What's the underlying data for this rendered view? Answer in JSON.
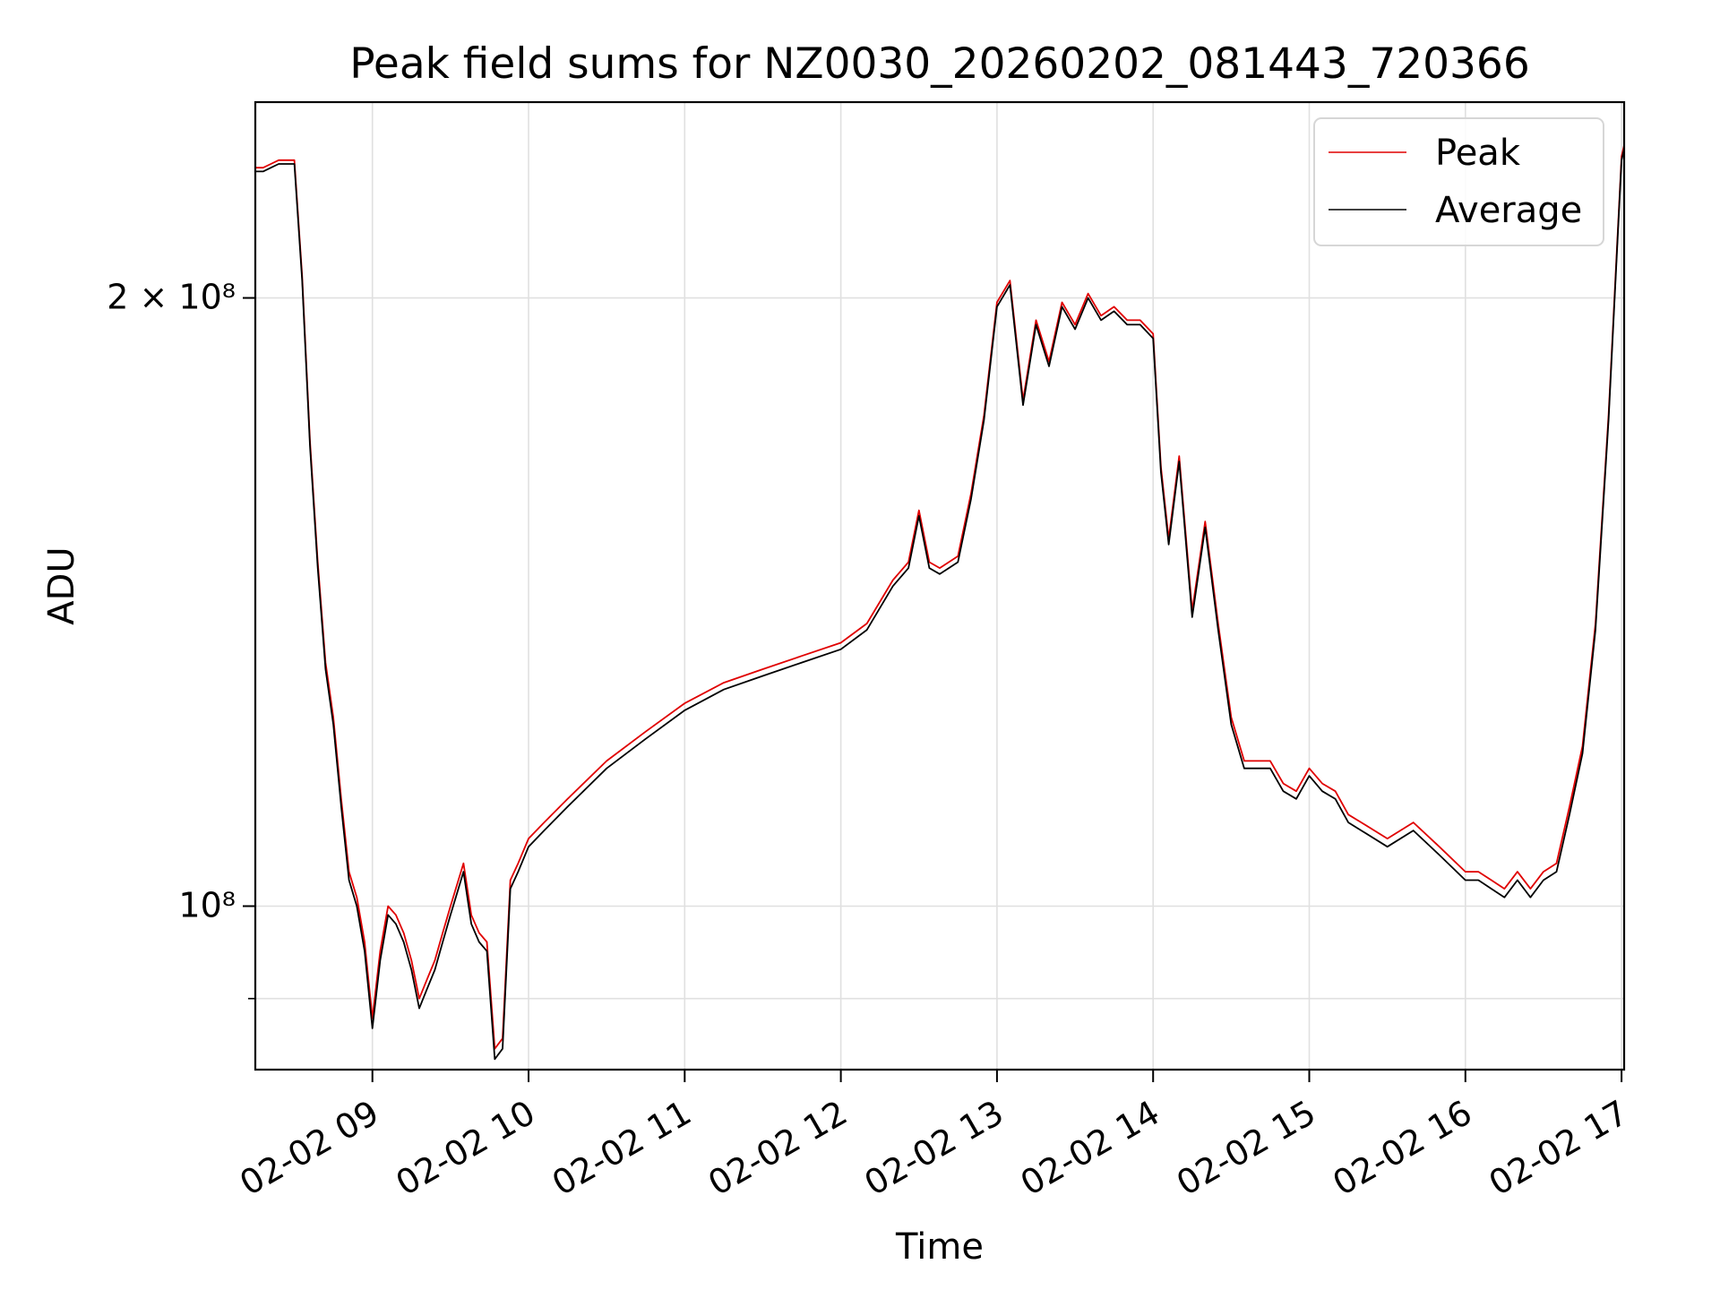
{
  "chart_data": {
    "type": "line",
    "title": "Peak field sums for NZ0030_20260202_081443_720366",
    "xlabel": "Time",
    "ylabel": "ADU",
    "y_scale": "log",
    "ylim": [
      83000000,
      250000000
    ],
    "xlim": [
      "02-02 08:15",
      "02-02 17:01"
    ],
    "grid": true,
    "legend": {
      "position": "top-right",
      "entries": [
        "Peak",
        "Average"
      ]
    },
    "x_ticks": [
      "02-02 09",
      "02-02 10",
      "02-02 11",
      "02-02 12",
      "02-02 13",
      "02-02 14",
      "02-02 15",
      "02-02 16",
      "02-02 17"
    ],
    "y_ticks": [
      "2 × 10⁸",
      "10⁸"
    ],
    "colors": {
      "Peak": "#e00000",
      "Average": "#000000",
      "grid": "#e0e0e0"
    },
    "x": [
      "02-02 08:15",
      "02-02 08:18",
      "02-02 08:21",
      "02-02 08:24",
      "02-02 08:27",
      "02-02 08:30",
      "02-02 08:33",
      "02-02 08:36",
      "02-02 08:39",
      "02-02 08:42",
      "02-02 08:45",
      "02-02 08:48",
      "02-02 08:51",
      "02-02 08:54",
      "02-02 08:57",
      "02-02 09:00",
      "02-02 09:03",
      "02-02 09:06",
      "02-02 09:09",
      "02-02 09:12",
      "02-02 09:15",
      "02-02 09:18",
      "02-02 09:21",
      "02-02 09:24",
      "02-02 09:27",
      "02-02 09:30",
      "02-02 09:35",
      "02-02 09:38",
      "02-02 09:41",
      "02-02 09:44",
      "02-02 09:47",
      "02-02 09:50",
      "02-02 09:53",
      "02-02 09:56",
      "02-02 10:00",
      "02-02 10:06",
      "02-02 10:15",
      "02-02 10:30",
      "02-02 10:45",
      "02-02 11:00",
      "02-02 11:15",
      "02-02 11:30",
      "02-02 11:45",
      "02-02 12:00",
      "02-02 12:10",
      "02-02 12:20",
      "02-02 12:26",
      "02-02 12:30",
      "02-02 12:34",
      "02-02 12:38",
      "02-02 12:45",
      "02-02 12:50",
      "02-02 12:55",
      "02-02 13:00",
      "02-02 13:05",
      "02-02 13:10",
      "02-02 13:15",
      "02-02 13:20",
      "02-02 13:25",
      "02-02 13:30",
      "02-02 13:35",
      "02-02 13:40",
      "02-02 13:45",
      "02-02 13:50",
      "02-02 13:55",
      "02-02 14:00",
      "02-02 14:03",
      "02-02 14:06",
      "02-02 14:10",
      "02-02 14:15",
      "02-02 14:20",
      "02-02 14:25",
      "02-02 14:30",
      "02-02 14:35",
      "02-02 14:40",
      "02-02 14:45",
      "02-02 14:50",
      "02-02 14:55",
      "02-02 15:00",
      "02-02 15:05",
      "02-02 15:10",
      "02-02 15:15",
      "02-02 15:20",
      "02-02 15:30",
      "02-02 15:40",
      "02-02 15:50",
      "02-02 16:00",
      "02-02 16:05",
      "02-02 16:10",
      "02-02 16:15",
      "02-02 16:20",
      "02-02 16:25",
      "02-02 16:30",
      "02-02 16:35",
      "02-02 16:40",
      "02-02 16:45",
      "02-02 16:50",
      "02-02 16:55",
      "02-02 17:00",
      "02-02 17:01"
    ],
    "series": [
      {
        "name": "Peak",
        "values": [
          232000000,
          232000000,
          233000000,
          234000000,
          234000000,
          234000000,
          205000000,
          170000000,
          148000000,
          132000000,
          124000000,
          113000000,
          104000000,
          101000000,
          96000000,
          88000000,
          95000000,
          100000000,
          99000000,
          97000000,
          94000000,
          90000000,
          92000000,
          94000000,
          97000000,
          100000000,
          105000000,
          99000000,
          97000000,
          96000000,
          85000000,
          86000000,
          103000000,
          105000000,
          108000000,
          110000000,
          113000000,
          118000000,
          122000000,
          126000000,
          129000000,
          131000000,
          133000000,
          135000000,
          138000000,
          145000000,
          148000000,
          157000000,
          148000000,
          147000000,
          149000000,
          160000000,
          175000000,
          199000000,
          204000000,
          178000000,
          195000000,
          186000000,
          199000000,
          194000000,
          201000000,
          196000000,
          198000000,
          195000000,
          195000000,
          192000000,
          165000000,
          152000000,
          167000000,
          140000000,
          155000000,
          138000000,
          124000000,
          118000000,
          118000000,
          118000000,
          115000000,
          114000000,
          117000000,
          115000000,
          114000000,
          111000000,
          110000000,
          108000000,
          110000000,
          107000000,
          104000000,
          104000000,
          103000000,
          102000000,
          104000000,
          102000000,
          104000000,
          105000000,
          112000000,
          120000000,
          138000000,
          175000000,
          235000000,
          238000000
        ]
      },
      {
        "name": "Average",
        "values": [
          231000000,
          231000000,
          232000000,
          233000000,
          233000000,
          233000000,
          204000000,
          169000000,
          147000000,
          131000000,
          123000000,
          112000000,
          103000000,
          100000000,
          95000000,
          87000000,
          94000000,
          99000000,
          98000000,
          96000000,
          93000000,
          89000000,
          91000000,
          93000000,
          96000000,
          99000000,
          104000000,
          98000000,
          96000000,
          95000000,
          84000000,
          85000000,
          102000000,
          104000000,
          107000000,
          109000000,
          112000000,
          117000000,
          121000000,
          125000000,
          128000000,
          130000000,
          132000000,
          134000000,
          137000000,
          144000000,
          147000000,
          156000000,
          147000000,
          146000000,
          148000000,
          159000000,
          174000000,
          198000000,
          203000000,
          177000000,
          194000000,
          185000000,
          198000000,
          193000000,
          200000000,
          195000000,
          197000000,
          194000000,
          194000000,
          191000000,
          164000000,
          151000000,
          166000000,
          139000000,
          154000000,
          137000000,
          123000000,
          117000000,
          117000000,
          117000000,
          114000000,
          113000000,
          116000000,
          114000000,
          113000000,
          110000000,
          109000000,
          107000000,
          109000000,
          106000000,
          103000000,
          103000000,
          102000000,
          101000000,
          103000000,
          101000000,
          103000000,
          104000000,
          111000000,
          119000000,
          137000000,
          174000000,
          234000000,
          237000000
        ]
      }
    ]
  }
}
